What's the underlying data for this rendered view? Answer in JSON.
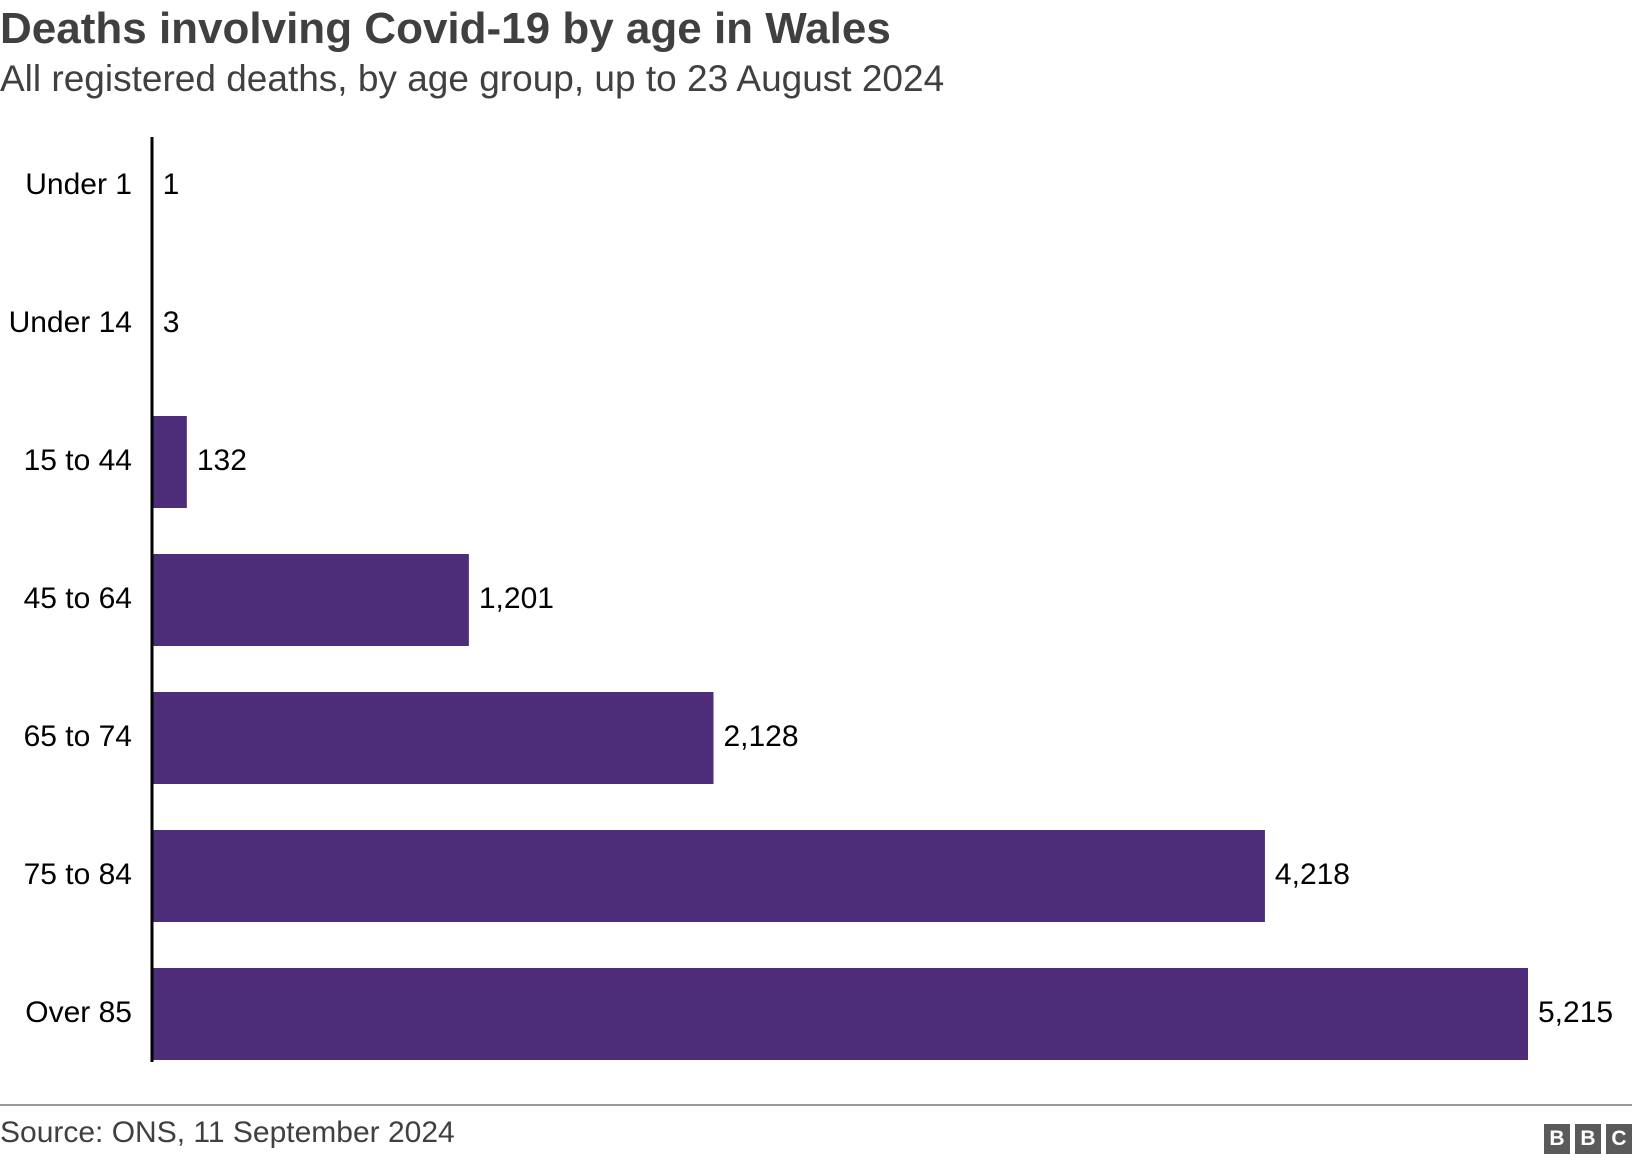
{
  "title": "Deaths involving Covid-19 by age in Wales",
  "subtitle": "All registered deaths, by age group, up to 23 August 2024",
  "source": "Source: ONS, 11 September 2024",
  "logo": [
    "B",
    "B",
    "C"
  ],
  "colors": {
    "bar": "#4d2c79",
    "text": "#404040",
    "axis": "#000000"
  },
  "chart_data": {
    "type": "bar",
    "orientation": "horizontal",
    "title": "Deaths involving Covid-19 by age in Wales",
    "subtitle": "All registered deaths, by age group, up to 23 August 2024",
    "categories": [
      "Under 1",
      "Under 14",
      "15 to 44",
      "45 to 64",
      "65 to 74",
      "75 to 84",
      "Over 85"
    ],
    "values": [
      1,
      3,
      132,
      1201,
      2128,
      4218,
      5215
    ],
    "value_labels": [
      "1",
      "3",
      "132",
      "1,201",
      "2,128",
      "4,218",
      "5,215"
    ],
    "xlabel": "",
    "ylabel": "",
    "xlim": [
      0,
      5215
    ],
    "grid": false,
    "legend": "none"
  }
}
